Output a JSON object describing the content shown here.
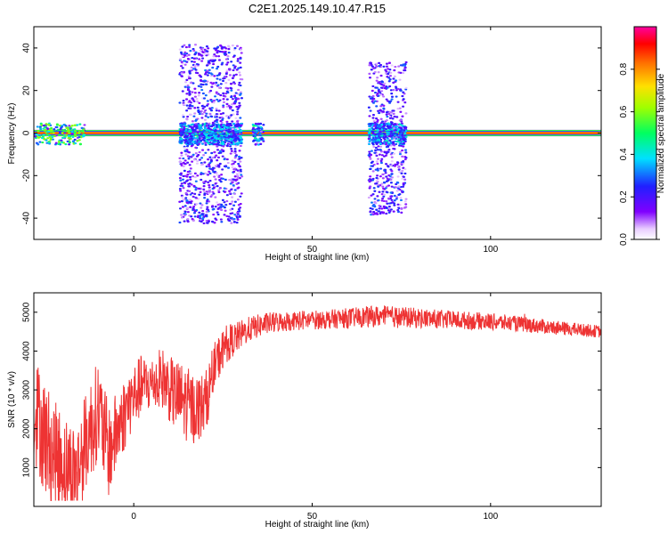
{
  "figure": {
    "title": "C2E1.2025.149.10.47.R15"
  },
  "chart_data": [
    {
      "type": "heatmap",
      "xlabel": "Height of straight line (km)",
      "ylabel": "Frequency (Hz)",
      "xlim": [
        -28,
        131
      ],
      "ylim": [
        -50,
        50
      ],
      "xticks": [
        0,
        50,
        100
      ],
      "yticks": [
        -40,
        -20,
        0,
        20,
        40
      ],
      "colorbar": {
        "label": "Normalized spectral amplitude",
        "range": [
          0,
          1
        ],
        "ticks": [
          "0.0",
          "0.2",
          "0.4",
          "0.6",
          "0.8"
        ],
        "colormap": "rainbow (white/violet low → blue → cyan → green → yellow → red → magenta high)"
      },
      "features": [
        {
          "kind": "carrier_line",
          "frequency_hz": 0,
          "x_range": [
            -28,
            131
          ],
          "amplitude": 0.85
        },
        {
          "kind": "broadband_scatter",
          "x_range": [
            -28,
            -14
          ],
          "frequency_range": [
            -5,
            5
          ],
          "amplitude": 0.35
        },
        {
          "kind": "broadband_scatter",
          "x_range": [
            12.5,
            30
          ],
          "frequency_range": [
            -42,
            42
          ],
          "amplitude": 0.15
        },
        {
          "kind": "broadband_scatter",
          "x_range": [
            33,
            36
          ],
          "frequency_range": [
            -5,
            5
          ],
          "amplitude": 0.2
        },
        {
          "kind": "broadband_scatter",
          "x_range": [
            65.5,
            76
          ],
          "frequency_range": [
            -38,
            34
          ],
          "amplitude": 0.15
        }
      ]
    },
    {
      "type": "line",
      "xlabel": "Height of straight line (km)",
      "ylabel": "SNR (10 * v/v)",
      "xlim": [
        -28,
        131
      ],
      "ylim": [
        0,
        5500
      ],
      "xticks": [
        0,
        50,
        100
      ],
      "yticks": [
        1000,
        2000,
        3000,
        4000,
        5000
      ],
      "color": "#ee3333",
      "x": [
        -28,
        -25,
        -22,
        -19,
        -16,
        -13,
        -10,
        -7,
        -4,
        -1,
        2,
        5,
        8,
        11,
        14,
        17,
        20,
        23,
        26,
        29,
        32,
        35,
        38,
        41,
        44,
        47,
        50,
        55,
        60,
        65,
        70,
        75,
        80,
        85,
        90,
        95,
        100,
        105,
        110,
        115,
        120,
        125,
        131
      ],
      "mean": [
        2600,
        1800,
        1300,
        1050,
        900,
        1800,
        2500,
        1400,
        2100,
        2700,
        3100,
        3150,
        3300,
        2900,
        2700,
        2500,
        2650,
        3700,
        4200,
        4350,
        4550,
        4650,
        4720,
        4750,
        4780,
        4790,
        4800,
        4820,
        4850,
        4880,
        4900,
        4870,
        4850,
        4820,
        4800,
        4780,
        4760,
        4720,
        4680,
        4630,
        4580,
        4550,
        4500
      ],
      "amplitude": [
        1400,
        1500,
        1400,
        1300,
        1200,
        1300,
        1300,
        1200,
        1000,
        900,
        800,
        700,
        800,
        900,
        1000,
        900,
        800,
        600,
        500,
        400,
        330,
        300,
        280,
        270,
        260,
        260,
        250,
        250,
        260,
        270,
        280,
        270,
        260,
        250,
        240,
        230,
        220,
        210,
        200,
        190,
        180,
        170,
        160
      ]
    }
  ]
}
